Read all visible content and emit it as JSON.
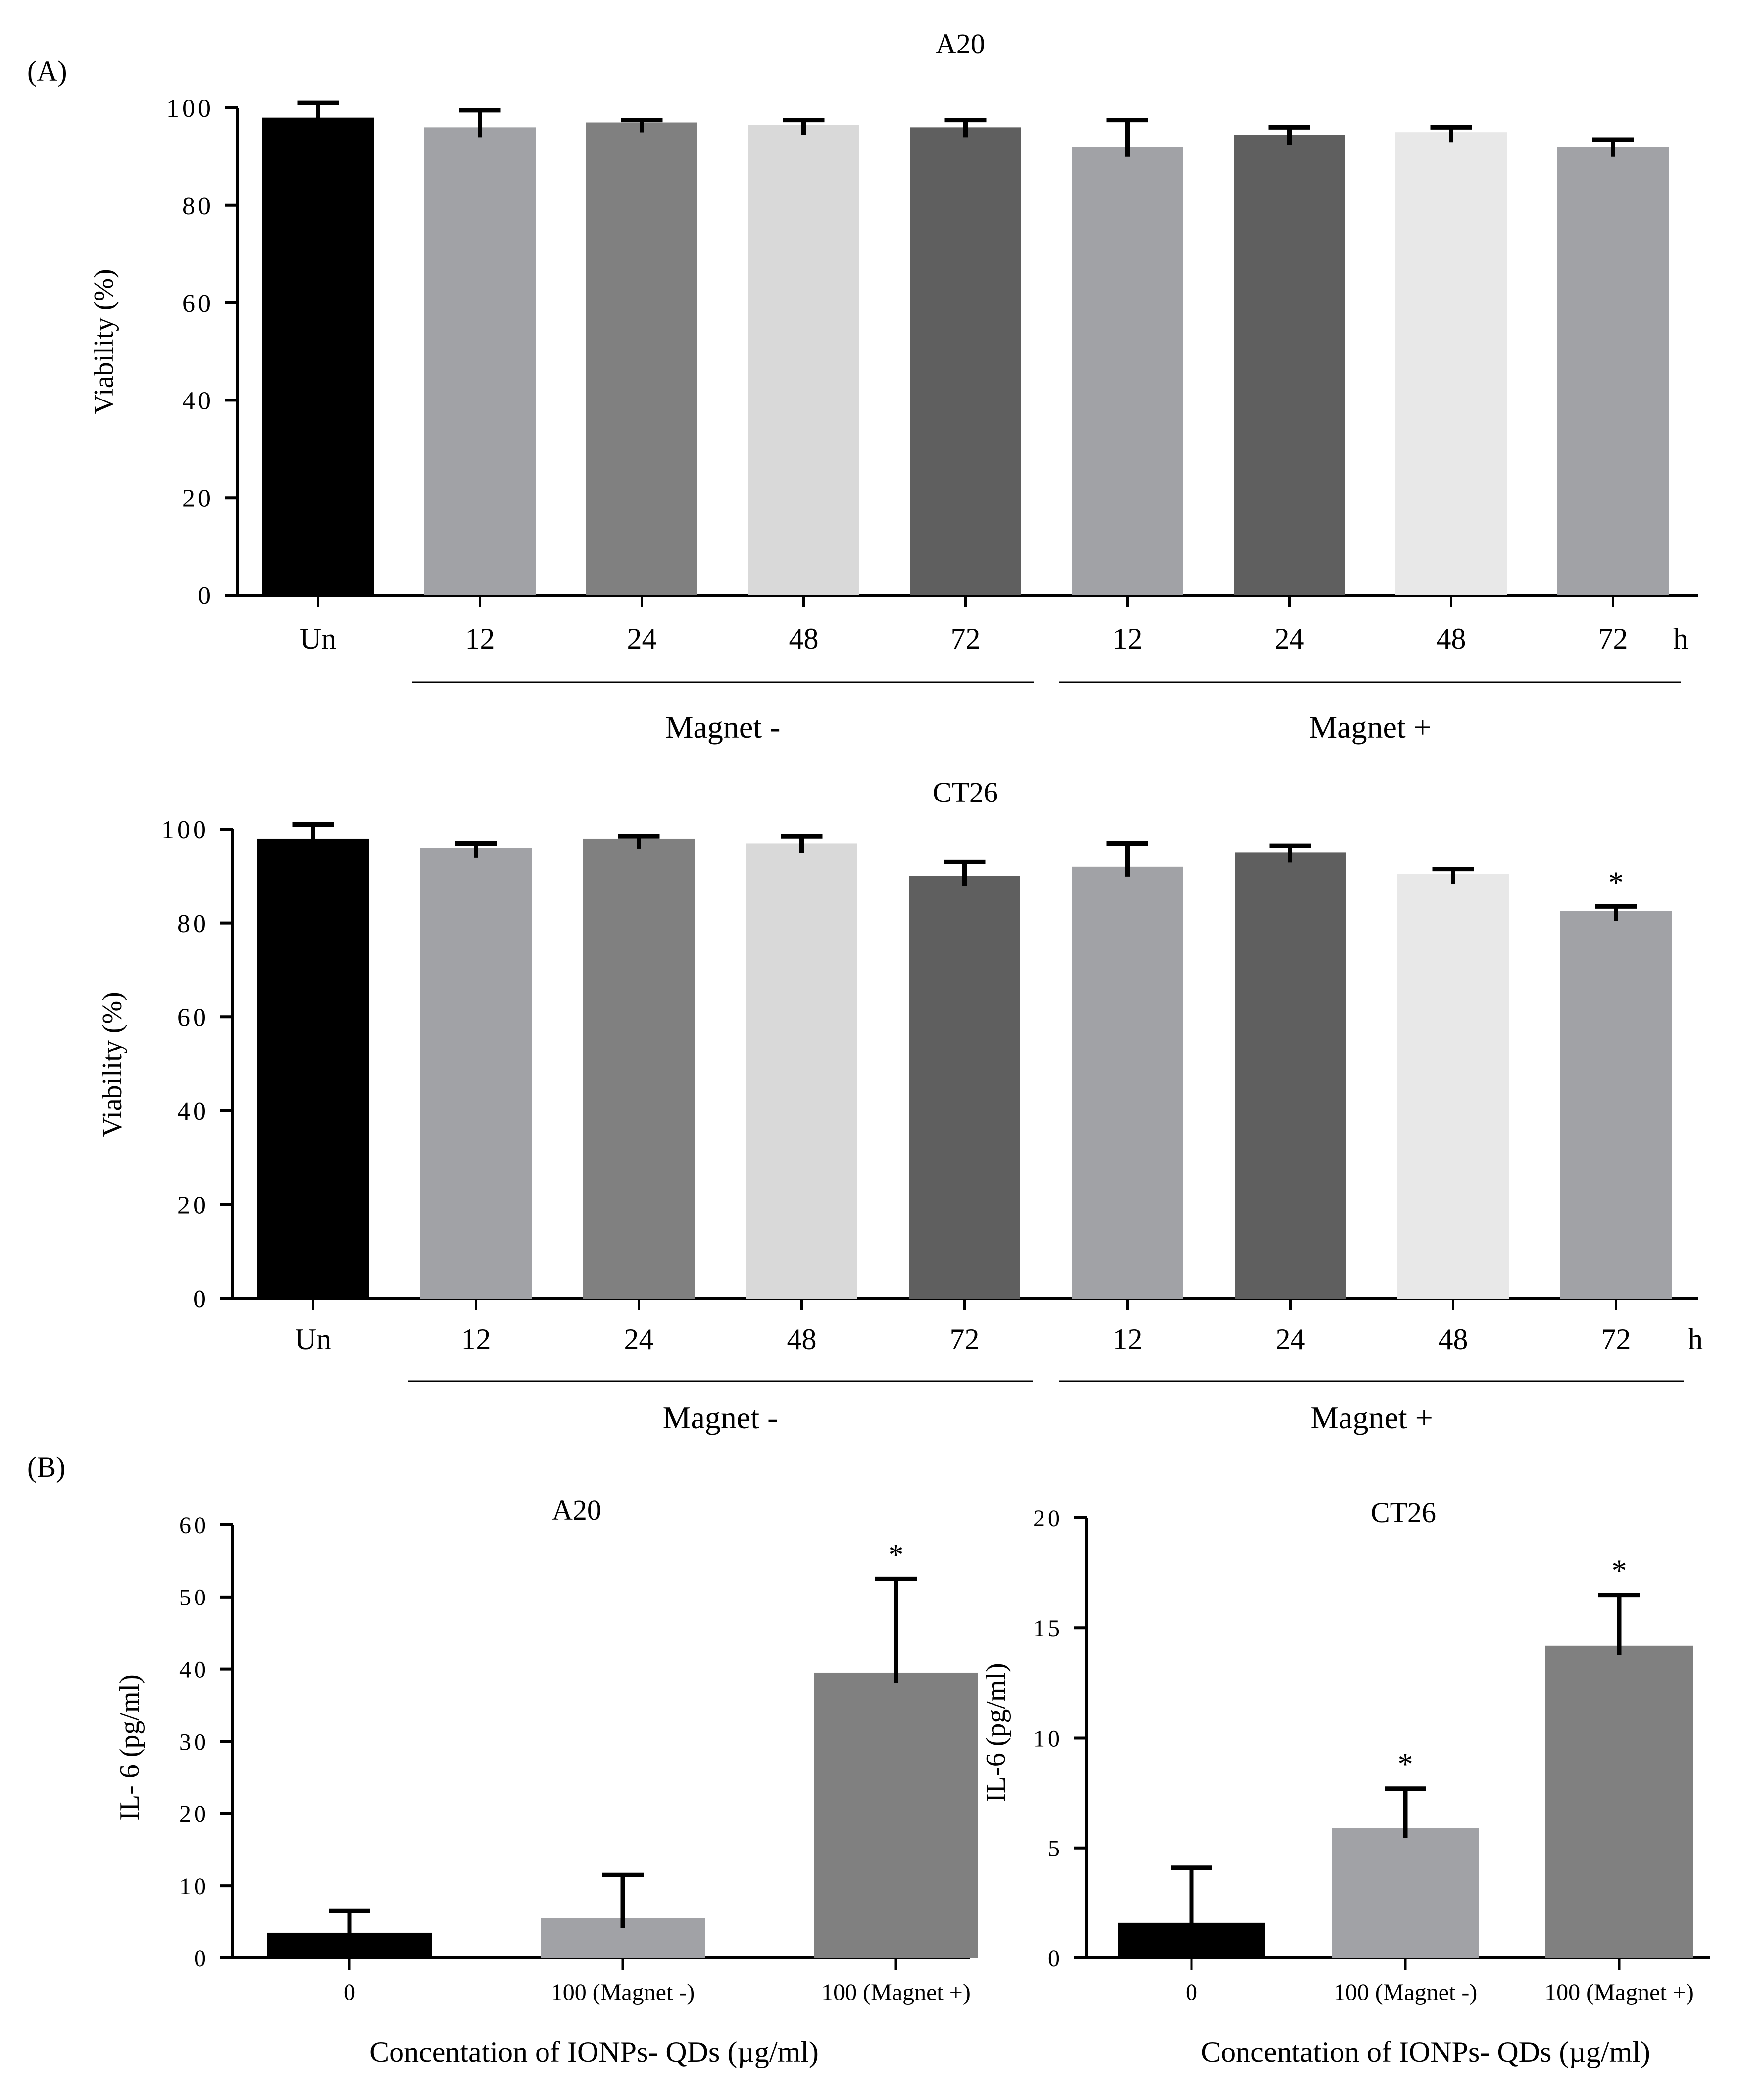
{
  "figure": {
    "panel_a_label": "(A)",
    "panel_b_label": "(B)"
  },
  "colors": {
    "black": "#000000",
    "mid_gray": "#a1a2a6",
    "dark_gray": "#808080",
    "light_gray": "#d9d9d9",
    "charcoal": "#5f5f5f",
    "very_light": "#e8e8e8"
  },
  "chart_data": [
    {
      "id": "a20-viability",
      "type": "bar",
      "title": "A20",
      "ylabel": "Viability (%)",
      "xlabel": "",
      "ylim": [
        0,
        100
      ],
      "yticks": [
        "0",
        "20",
        "40",
        "60",
        "80",
        "100"
      ],
      "x_unit": "h",
      "categories": [
        "Un",
        "12",
        "24",
        "48",
        "72",
        "12",
        "24",
        "48",
        "72"
      ],
      "values": [
        98,
        96,
        97,
        96.5,
        96,
        92,
        94.5,
        95,
        92
      ],
      "errors": [
        3,
        3.5,
        0.5,
        1,
        1.5,
        5.5,
        1.5,
        1,
        1.5
      ],
      "bar_colors": [
        "#000000",
        "#a1a2a6",
        "#808080",
        "#d9d9d9",
        "#5f5f5f",
        "#a1a2a6",
        "#5f5f5f",
        "#e8e8e8",
        "#a1a2a6"
      ],
      "significance": [
        "",
        "",
        "",
        "",
        "",
        "",
        "",
        "",
        ""
      ],
      "groups": [
        {
          "label": "Magnet -",
          "start": 1,
          "end": 4
        },
        {
          "label": "Magnet +",
          "start": 5,
          "end": 8
        }
      ]
    },
    {
      "id": "ct26-viability",
      "type": "bar",
      "title": "CT26",
      "ylabel": "Viability (%)",
      "xlabel": "",
      "ylim": [
        0,
        100
      ],
      "yticks": [
        "0",
        "20",
        "40",
        "60",
        "80",
        "100"
      ],
      "x_unit": "h",
      "categories": [
        "Un",
        "12",
        "24",
        "48",
        "72",
        "12",
        "24",
        "48",
        "72"
      ],
      "values": [
        98,
        96,
        98,
        97,
        90,
        92,
        95,
        90.5,
        82.5
      ],
      "errors": [
        3,
        1,
        0.5,
        1.5,
        3,
        5,
        1.5,
        1,
        1
      ],
      "bar_colors": [
        "#000000",
        "#a1a2a6",
        "#808080",
        "#d9d9d9",
        "#5f5f5f",
        "#a1a2a6",
        "#5f5f5f",
        "#e8e8e8",
        "#a1a2a6"
      ],
      "significance": [
        "",
        "",
        "",
        "",
        "",
        "",
        "",
        "",
        "*"
      ],
      "groups": [
        {
          "label": "Magnet -",
          "start": 1,
          "end": 4
        },
        {
          "label": "Magnet +",
          "start": 5,
          "end": 8
        }
      ]
    },
    {
      "id": "a20-il6",
      "type": "bar",
      "title": "A20",
      "ylabel": "IL- 6 (pg/ml)",
      "xlabel": "Concentation of IONPs- QDs (µg/ml)",
      "ylim": [
        0,
        60
      ],
      "yticks": [
        "0",
        "10",
        "20",
        "30",
        "40",
        "50",
        "60"
      ],
      "categories": [
        "0",
        "100 (Magnet -)",
        "100 (Magnet +)"
      ],
      "values": [
        3.5,
        5.5,
        39.5
      ],
      "errors": [
        3,
        6,
        13
      ],
      "bar_colors": [
        "#000000",
        "#a1a2a6",
        "#808080"
      ],
      "significance": [
        "",
        "",
        "*"
      ]
    },
    {
      "id": "ct26-il6",
      "type": "bar",
      "title": "CT26",
      "ylabel": "IL-6 (pg/ml)",
      "xlabel": "Concentation of IONPs- QDs (µg/ml)",
      "ylim": [
        0,
        20
      ],
      "yticks": [
        "0",
        "5",
        "10",
        "15",
        "20"
      ],
      "categories": [
        "0",
        "100 (Magnet -)",
        "100 (Magnet +)"
      ],
      "values": [
        1.6,
        5.9,
        14.2
      ],
      "errors": [
        2.5,
        1.8,
        2.3
      ],
      "bar_colors": [
        "#000000",
        "#a1a2a6",
        "#808080"
      ],
      "significance": [
        "",
        "*",
        "*"
      ]
    }
  ]
}
